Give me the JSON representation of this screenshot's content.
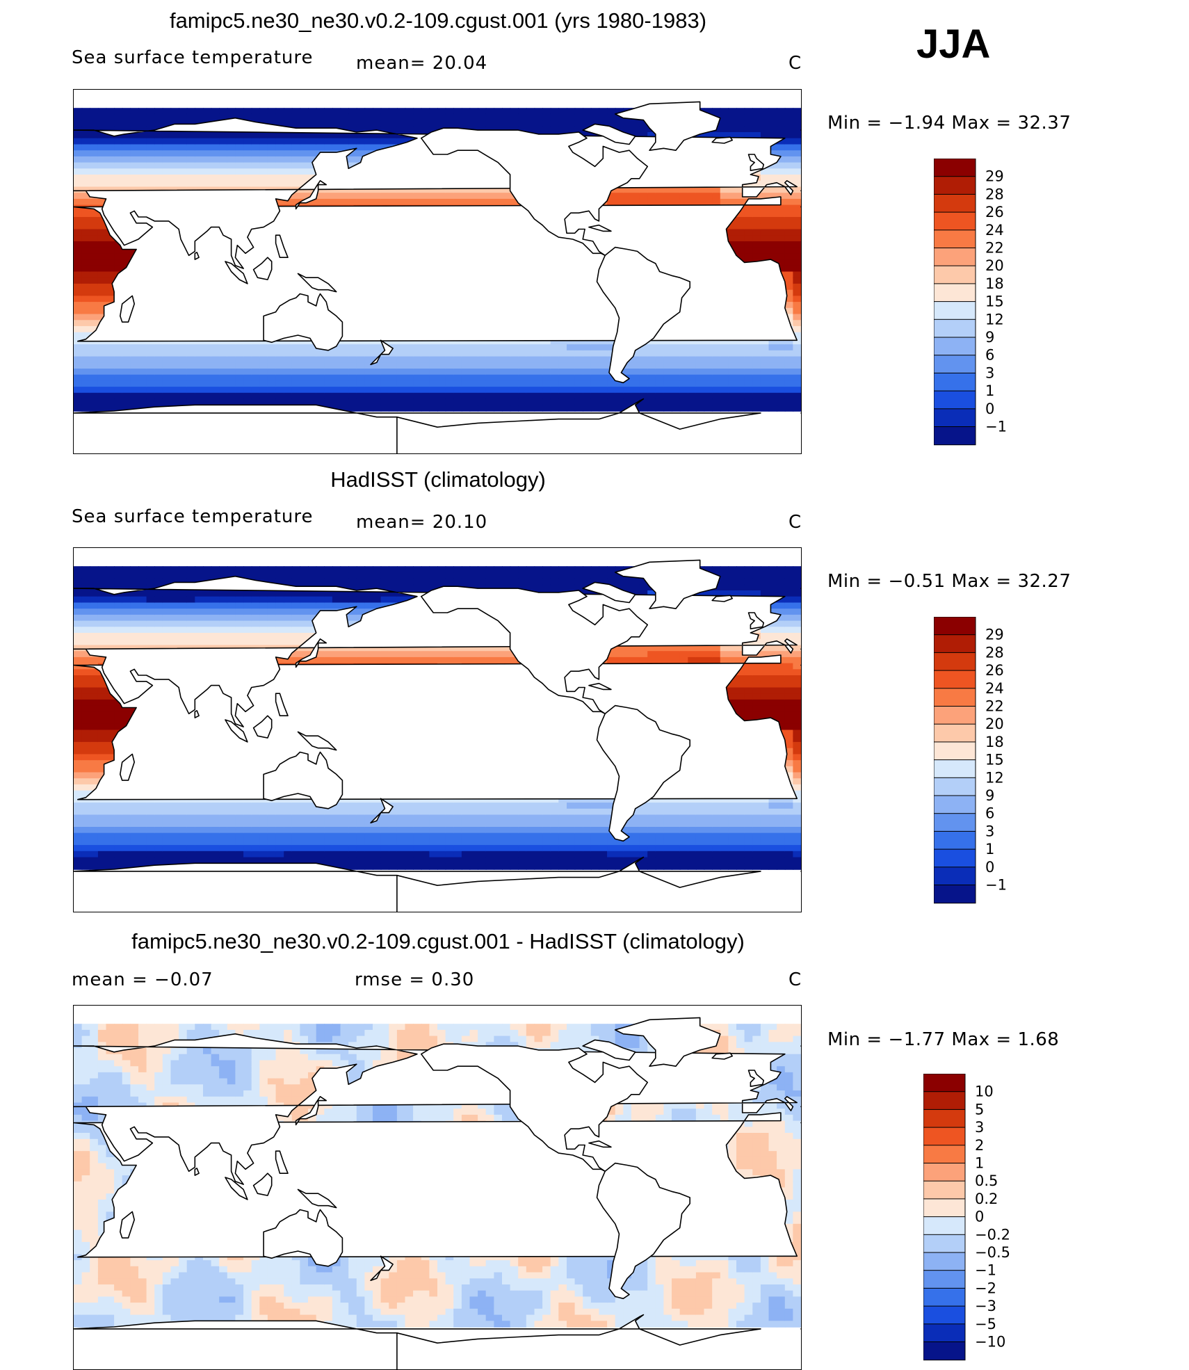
{
  "season": "JJA",
  "units": "C",
  "panels": [
    {
      "title": "famipc5.ne30_ne30.v0.2-109.cgust.001 (yrs 1980-1983)",
      "left_label": "Sea surface temperature",
      "stat1": "mean=   20.04",
      "stat2": "",
      "units": "C",
      "minmax": "Min  =   −1.94  Max  =    32.37",
      "field": "model"
    },
    {
      "title": "HadISST (climatology)",
      "left_label": "Sea surface temperature",
      "stat1": "mean=   20.10",
      "stat2": "",
      "units": "C",
      "minmax": "Min  =   −0.51  Max  =    32.27",
      "field": "obs"
    },
    {
      "title": "famipc5.ne30_ne30.v0.2-109.cgust.001 - HadISST (climatology)",
      "left_label": "mean  =    −0.07",
      "stat1": "rmse  =     0.30",
      "stat2": "",
      "units": "C",
      "minmax": "Min  =   −1.77  Max  =     1.68",
      "field": "diff"
    }
  ],
  "colorbars": {
    "sst": {
      "ticks": [
        "29",
        "28",
        "26",
        "24",
        "22",
        "20",
        "18",
        "15",
        "12",
        "9",
        "6",
        "3",
        "1",
        "0",
        "−1"
      ],
      "colors": [
        "#8b0000",
        "#b01d05",
        "#d43a0e",
        "#ee5522",
        "#f87a44",
        "#fca27a",
        "#fdc9aa",
        "#fde6d6",
        "#d6e8fb",
        "#b3cff8",
        "#8db2f4",
        "#6293ef",
        "#3671ea",
        "#1a4fe0",
        "#0a2db8",
        "#06148a"
      ]
    },
    "diff": {
      "ticks": [
        "10",
        "5",
        "3",
        "2",
        "1",
        "0.5",
        "0.2",
        "0",
        "−0.2",
        "−0.5",
        "−1",
        "−2",
        "−3",
        "−5",
        "−10"
      ],
      "colors": [
        "#8b0000",
        "#b01d05",
        "#d43a0e",
        "#ee5522",
        "#f87a44",
        "#fca27a",
        "#fdc9aa",
        "#fde6d6",
        "#d6e8fb",
        "#b3cff8",
        "#8db2f4",
        "#6293ef",
        "#3671ea",
        "#1a4fe0",
        "#0a2db8",
        "#06148a"
      ]
    }
  }
}
